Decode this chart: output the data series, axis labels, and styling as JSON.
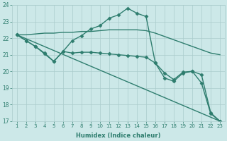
{
  "xlabel": "Humidex (Indice chaleur)",
  "background_color": "#cce8e8",
  "grid_color": "#aacccc",
  "line_color": "#2e7d6e",
  "xlim_min": 0.5,
  "xlim_max": 23.5,
  "ylim_min": 17,
  "ylim_max": 24,
  "yticks": [
    17,
    18,
    19,
    20,
    21,
    22,
    23,
    24
  ],
  "xticks": [
    1,
    2,
    3,
    4,
    5,
    6,
    7,
    8,
    9,
    10,
    11,
    12,
    13,
    14,
    15,
    16,
    17,
    18,
    19,
    20,
    21,
    22,
    23
  ],
  "series": [
    {
      "x": [
        1,
        23
      ],
      "y": [
        22.2,
        17.0
      ],
      "marker": null,
      "linewidth": 1.0
    },
    {
      "x": [
        1,
        2,
        3,
        4,
        5,
        6,
        7,
        8,
        9,
        10,
        11,
        12,
        13,
        14,
        15,
        16,
        17,
        18,
        19,
        20,
        21,
        22,
        23
      ],
      "y": [
        22.2,
        22.2,
        22.25,
        22.3,
        22.3,
        22.35,
        22.35,
        22.4,
        22.4,
        22.45,
        22.5,
        22.5,
        22.5,
        22.5,
        22.45,
        22.3,
        22.1,
        21.9,
        21.7,
        21.5,
        21.3,
        21.1,
        21.0
      ],
      "marker": null,
      "linewidth": 1.0
    },
    {
      "x": [
        1,
        2,
        3,
        4,
        5,
        6,
        7,
        8,
        9,
        10,
        11,
        12,
        13,
        14,
        15,
        16,
        17,
        18,
        19,
        20,
        21,
        22,
        23
      ],
      "y": [
        22.2,
        21.85,
        21.5,
        21.05,
        20.6,
        21.2,
        21.85,
        22.15,
        22.55,
        22.75,
        23.2,
        23.4,
        23.8,
        23.5,
        23.3,
        20.5,
        19.6,
        19.4,
        19.9,
        20.0,
        19.3,
        17.45,
        17.0
      ],
      "marker": "D",
      "linewidth": 1.0
    },
    {
      "x": [
        1,
        2,
        3,
        4,
        5,
        6,
        7,
        8,
        9,
        10,
        11,
        12,
        13,
        14,
        15,
        16,
        17,
        18,
        19,
        20,
        21,
        22,
        23
      ],
      "y": [
        22.2,
        21.85,
        21.5,
        21.1,
        20.6,
        21.2,
        21.1,
        21.15,
        21.15,
        21.1,
        21.05,
        21.0,
        20.95,
        20.9,
        20.85,
        20.5,
        19.9,
        19.5,
        19.95,
        20.0,
        19.8,
        17.5,
        17.0
      ],
      "marker": "D",
      "linewidth": 1.0
    }
  ]
}
